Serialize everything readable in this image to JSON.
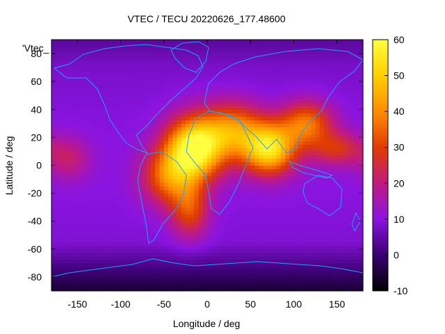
{
  "chart_data": {
    "type": "heatmap",
    "title": "VTEC / TECU 20220626_177.48600",
    "xlabel": "Longitude / deg",
    "ylabel": "Latitude / deg",
    "xlim": [
      -180,
      180
    ],
    "ylim": [
      -90,
      90
    ],
    "x_ticks": [
      -150,
      -100,
      -50,
      0,
      50,
      100,
      150
    ],
    "y_ticks": [
      -80,
      -60,
      -40,
      -20,
      0,
      20,
      40,
      60,
      80
    ],
    "colorbar": {
      "range": [
        -10,
        60
      ],
      "ticks": [
        -10,
        0,
        10,
        20,
        30,
        40,
        50,
        60
      ]
    },
    "legend": "'Vtec_",
    "colormap": [
      "#000000",
      "#3a0070",
      "#8a14e0",
      "#c01a80",
      "#e03c00",
      "#ff8c00",
      "#ffd000",
      "#ffff40"
    ],
    "coastline_color": "#1ea0ff",
    "hotspots": [
      {
        "lon": -15,
        "lat": 12,
        "vtec": 58,
        "slon": 32,
        "slat": 22
      },
      {
        "lon": 72,
        "lat": 12,
        "vtec": 50,
        "slon": 30,
        "slat": 18
      },
      {
        "lon": 30,
        "lat": 25,
        "vtec": 36,
        "slon": 35,
        "slat": 20
      },
      {
        "lon": -45,
        "lat": -8,
        "vtec": 32,
        "slon": 30,
        "slat": 20
      },
      {
        "lon": 115,
        "lat": 30,
        "vtec": 34,
        "slon": 30,
        "slat": 16
      },
      {
        "lon": -20,
        "lat": -32,
        "vtec": 28,
        "slon": 22,
        "slat": 20
      },
      {
        "lon": 150,
        "lat": 12,
        "vtec": 24,
        "slon": 30,
        "slat": 12
      },
      {
        "lon": -160,
        "lat": 5,
        "vtec": 18,
        "slon": 25,
        "slat": 15
      }
    ],
    "background_vtec": 7
  }
}
